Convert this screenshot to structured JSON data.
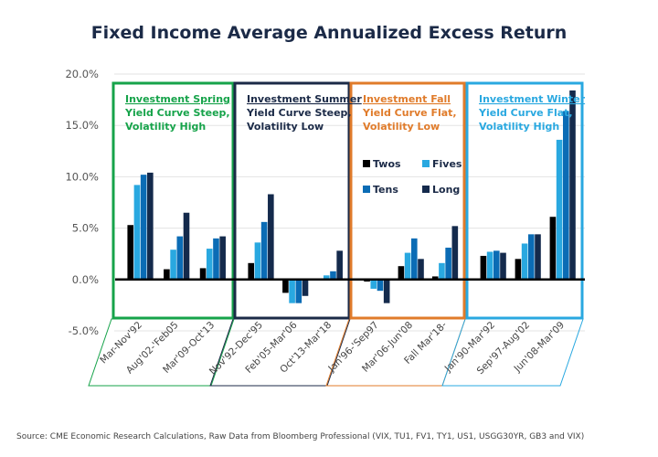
{
  "chart_data": {
    "type": "bar",
    "title": "Fixed Income Average Annualized Excess Return",
    "xlabel": "",
    "ylabel": "",
    "ylim": [
      -5,
      20
    ],
    "y_ticks": [
      "20.0%",
      "15.0%",
      "10.0%",
      "5.0%",
      "0.0%",
      "-5.0%"
    ],
    "y_tick_values": [
      20,
      15,
      10,
      5,
      0,
      -5
    ],
    "grid": true,
    "legend_position": "inside-fall-panel",
    "colors": {
      "Twos": "#000000",
      "Fives": "#29a8e0",
      "Tens": "#0b6cb5",
      "Long": "#142a4c"
    },
    "series_names": [
      "Twos",
      "Fives",
      "Tens",
      "Long"
    ],
    "phases": [
      {
        "name": "Investment Spring",
        "line1": "Yield Curve Steep,",
        "line2": "Volatility High",
        "color": "#16a34a",
        "categories": [
          "Mar-Nov'92",
          "Aug'02-'Feb05",
          "Mar'09-Oct'13"
        ],
        "values": {
          "Twos": [
            5.3,
            1.0,
            1.1
          ],
          "Fives": [
            9.2,
            2.9,
            3.0
          ],
          "Tens": [
            10.2,
            4.2,
            4.0
          ],
          "Long": [
            10.4,
            6.5,
            4.2
          ]
        }
      },
      {
        "name": "Investment Summer",
        "line1": "Yield Curve Steep,",
        "line2": "Volatility Low",
        "color": "#1b2a47",
        "categories": [
          "Nov'92-Dec'95",
          "Feb'05-Mar'06",
          "Oct'13-Mar'18"
        ],
        "values": {
          "Twos": [
            1.6,
            -1.3,
            0.0
          ],
          "Fives": [
            3.6,
            -2.3,
            0.4
          ],
          "Tens": [
            5.6,
            -2.3,
            0.8
          ],
          "Long": [
            8.3,
            -1.6,
            2.8
          ]
        }
      },
      {
        "name": "Investment Fall",
        "line1": "Yield Curve Flat,",
        "line2": "Volatility Low",
        "color": "#e07b2a",
        "categories": [
          "Jan'96-'Sep97",
          "Mar'06-Jun'08",
          "Fall Mar'18-"
        ],
        "values": {
          "Twos": [
            -0.2,
            1.3,
            0.3
          ],
          "Fives": [
            -0.9,
            2.6,
            1.6
          ],
          "Tens": [
            -1.1,
            4.0,
            3.1
          ],
          "Long": [
            -2.3,
            2.0,
            5.2
          ]
        }
      },
      {
        "name": "Investment Winter",
        "line1": "Yield Curve Flat,",
        "line2": "Volatility High",
        "color": "#29a8e0",
        "categories": [
          "Jan'90-Mar'92",
          "Sep'97-Aug'02",
          "Jun'08-Mar'09"
        ],
        "values": {
          "Twos": [
            2.3,
            2.0,
            6.1
          ],
          "Fives": [
            2.7,
            3.5,
            13.6
          ],
          "Tens": [
            2.8,
            4.4,
            16.4
          ],
          "Long": [
            2.6,
            4.4,
            18.4
          ]
        }
      }
    ],
    "source": "Source: CME Economic Research Calculations, Raw Data from Bloomberg Professional (VIX, TU1, FV1, TY1, US1, USGG30YR, GB3 and VIX)"
  }
}
